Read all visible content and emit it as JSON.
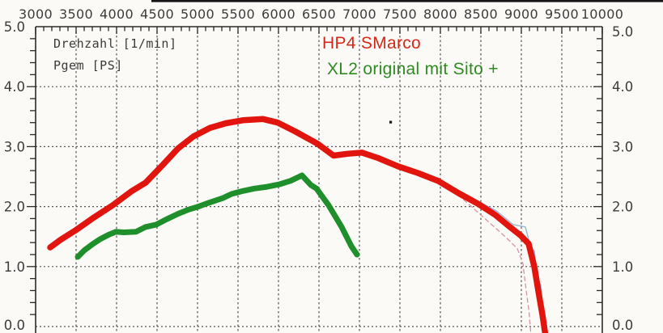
{
  "axis_labels": {
    "x": "Drehzahl [1/min]",
    "y": "Pgem [PS]"
  },
  "legend": {
    "items": [
      {
        "label": "HP4 SMarco",
        "color": "#d3281a"
      },
      {
        "label": "XL2 original mit Sito +",
        "color": "#2e8b22"
      }
    ]
  },
  "chart_data": {
    "type": "line",
    "title": "",
    "xlabel": "Drehzahl [1/min]",
    "ylabel": "Pgem [PS]",
    "xlim": [
      3000,
      10000
    ],
    "ylim": [
      0.0,
      5.0
    ],
    "grid": true,
    "legend_position": "top-center-inside",
    "x_major_ticks": [
      3000,
      3500,
      4000,
      4500,
      5000,
      5500,
      6000,
      6500,
      7000,
      7500,
      8000,
      8500,
      9000,
      9500,
      10000
    ],
    "x_tick_labels": [
      "3000",
      "3500",
      "4000",
      "4500",
      "5000",
      "5500",
      "6000",
      "6500",
      "7000",
      "7500",
      "8000",
      "8500",
      "9000",
      "9500",
      "10000"
    ],
    "x_minor_step": 100,
    "y_major_ticks": [
      0,
      1,
      2,
      3,
      4,
      5
    ],
    "y_tick_labels": [
      "0.0",
      "1.0",
      "2.0",
      "3.0",
      "4.0",
      "5.0"
    ],
    "y_minor_step": 0.2,
    "colors": {
      "grid": "#555555",
      "frame": "#2a2a2a",
      "scan_artifact": "#151515"
    },
    "series": [
      {
        "name": "ghost-trace-blue",
        "color": "#94b7d7",
        "width": 1.4,
        "dash": "",
        "points": [
          [
            3200,
            1.36
          ],
          [
            3500,
            1.65
          ],
          [
            3950,
            2.06
          ],
          [
            4360,
            2.44
          ],
          [
            4760,
            3.01
          ],
          [
            5150,
            3.35
          ],
          [
            5560,
            3.47
          ],
          [
            5810,
            3.49
          ],
          [
            6210,
            3.28
          ],
          [
            6480,
            3.08
          ],
          [
            6680,
            2.88
          ],
          [
            7030,
            2.93
          ],
          [
            7480,
            2.7
          ],
          [
            7970,
            2.46
          ],
          [
            8460,
            2.1
          ],
          [
            8700,
            1.92
          ],
          [
            8900,
            1.7
          ],
          [
            9050,
            1.66
          ],
          [
            9120,
            1.3
          ],
          [
            9160,
            1.26
          ],
          [
            9200,
            0.75
          ],
          [
            9240,
            0.7
          ],
          [
            9270,
            0.15
          ],
          [
            9300,
            0.12
          ],
          [
            9320,
            -0.12
          ]
        ]
      },
      {
        "name": "ghost-trace-pink-dashed",
        "color": "#d494a4",
        "width": 1.3,
        "dash": "5 4",
        "points": [
          [
            8080,
            2.35
          ],
          [
            8300,
            2.1
          ],
          [
            8550,
            1.8
          ],
          [
            8800,
            1.5
          ],
          [
            8950,
            1.3
          ],
          [
            9020,
            1.05
          ],
          [
            9060,
            0.6
          ],
          [
            9095,
            0.25
          ],
          [
            9115,
            -0.08
          ]
        ]
      },
      {
        "name": "HP4 SMarco",
        "color": "#e2140e",
        "width": 7.5,
        "dash": "",
        "points": [
          [
            3180,
            1.32
          ],
          [
            3300,
            1.44
          ],
          [
            3500,
            1.61
          ],
          [
            3700,
            1.8
          ],
          [
            3950,
            2.02
          ],
          [
            4190,
            2.26
          ],
          [
            4360,
            2.4
          ],
          [
            4560,
            2.68
          ],
          [
            4760,
            2.97
          ],
          [
            4950,
            3.17
          ],
          [
            5150,
            3.31
          ],
          [
            5350,
            3.39
          ],
          [
            5560,
            3.44
          ],
          [
            5810,
            3.46
          ],
          [
            5990,
            3.4
          ],
          [
            6210,
            3.25
          ],
          [
            6480,
            3.05
          ],
          [
            6680,
            2.85
          ],
          [
            6850,
            2.88
          ],
          [
            7030,
            2.9
          ],
          [
            7230,
            2.81
          ],
          [
            7480,
            2.67
          ],
          [
            7720,
            2.56
          ],
          [
            7970,
            2.43
          ],
          [
            8230,
            2.22
          ],
          [
            8460,
            2.05
          ],
          [
            8680,
            1.86
          ],
          [
            8840,
            1.68
          ],
          [
            8990,
            1.52
          ],
          [
            9090,
            1.38
          ],
          [
            9160,
            1.0
          ],
          [
            9215,
            0.55
          ],
          [
            9260,
            0.2
          ],
          [
            9295,
            -0.12
          ]
        ]
      },
      {
        "name": "XL2 original mit Sito +",
        "color": "#1f8f2b",
        "width": 7,
        "dash": "",
        "points": [
          [
            3520,
            1.16
          ],
          [
            3600,
            1.27
          ],
          [
            3700,
            1.37
          ],
          [
            3800,
            1.46
          ],
          [
            3900,
            1.53
          ],
          [
            3990,
            1.58
          ],
          [
            4090,
            1.57
          ],
          [
            4240,
            1.58
          ],
          [
            4360,
            1.66
          ],
          [
            4490,
            1.7
          ],
          [
            4620,
            1.79
          ],
          [
            4760,
            1.88
          ],
          [
            4890,
            1.95
          ],
          [
            5010,
            2.0
          ],
          [
            5110,
            2.05
          ],
          [
            5220,
            2.1
          ],
          [
            5310,
            2.14
          ],
          [
            5420,
            2.21
          ],
          [
            5560,
            2.26
          ],
          [
            5700,
            2.3
          ],
          [
            5860,
            2.33
          ],
          [
            6010,
            2.37
          ],
          [
            6150,
            2.43
          ],
          [
            6290,
            2.52
          ],
          [
            6400,
            2.36
          ],
          [
            6470,
            2.3
          ],
          [
            6620,
            2.02
          ],
          [
            6780,
            1.66
          ],
          [
            6900,
            1.34
          ],
          [
            6970,
            1.2
          ]
        ]
      }
    ]
  }
}
